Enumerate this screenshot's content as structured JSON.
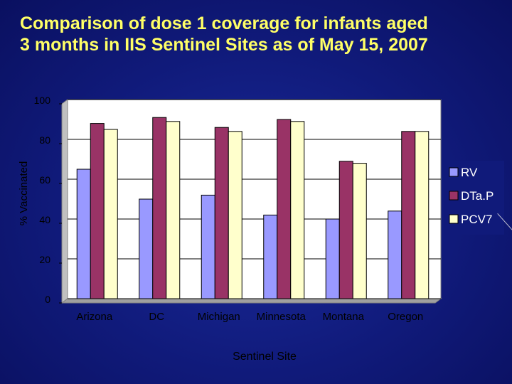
{
  "slide": {
    "title_line1": "Comparison of dose 1 coverage for infants aged",
    "title_line2": "3 months in IIS Sentinel Sites as of May 15, 2007"
  },
  "chart_data": {
    "type": "bar",
    "title": "Comparison of dose 1 coverage for infants aged 3 months in IIS Sentinel Sites as of May 15, 2007",
    "xlabel": "Sentinel Site",
    "ylabel": "% Vaccinated",
    "ylim": [
      0,
      100
    ],
    "yticks": [
      0,
      20,
      40,
      60,
      80,
      100
    ],
    "grid": true,
    "legend_position": "right",
    "categories": [
      "Arizona",
      "DC",
      "Michigan",
      "Minnesota",
      "Montana",
      "Oregon"
    ],
    "series": [
      {
        "name": "RV",
        "color": "#9999ff",
        "values": [
          65,
          50,
          52,
          42,
          40,
          44
        ]
      },
      {
        "name": "DTa.P",
        "color": "#993366",
        "values": [
          88,
          91,
          86,
          90,
          69,
          84
        ]
      },
      {
        "name": "PCV7",
        "color": "#ffffcc",
        "values": [
          85,
          89,
          84,
          89,
          68,
          84
        ]
      }
    ],
    "colors": {
      "title": "#ffff66",
      "plot_background": "#ffffff",
      "text": "#000000"
    }
  }
}
